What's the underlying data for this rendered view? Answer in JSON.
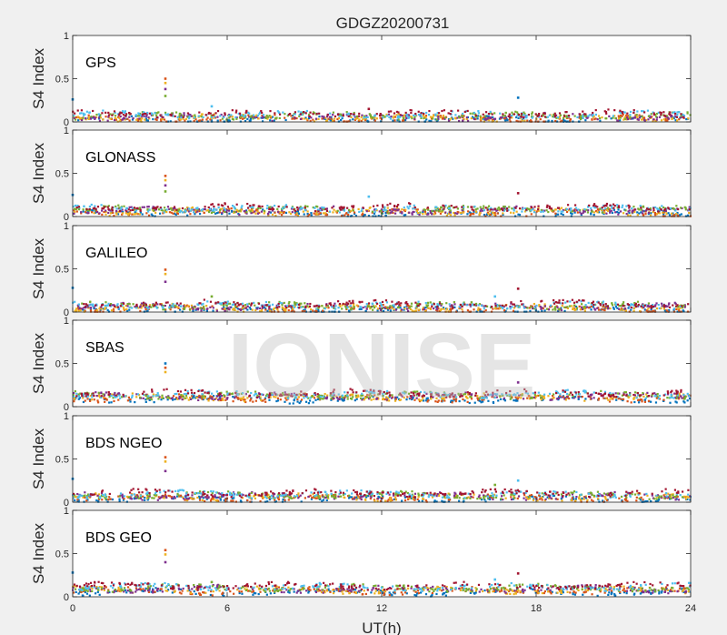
{
  "figure": {
    "title": "GDGZ20200731",
    "xlabel": "UT(h)",
    "watermark": "IONISE",
    "background": "#f0f0f0"
  },
  "chart_data": {
    "type": "scatter",
    "title": "GDGZ20200731",
    "xlabel": "UT(h)",
    "xlim": [
      0,
      24
    ],
    "xticks": [
      0,
      6,
      12,
      18,
      24
    ],
    "ylim": [
      0,
      1
    ],
    "yticks": [
      0,
      0.5,
      1
    ],
    "ylabel": "S4 Index",
    "grid": false,
    "series_colors": [
      "#0072BD",
      "#D95319",
      "#EDB120",
      "#7E2F8E",
      "#77AC30",
      "#4DBEEE",
      "#A2142F"
    ],
    "panels": [
      {
        "name": "GPS",
        "baseline": 0.06,
        "points": [
          {
            "x": 0.0,
            "y": 0.26
          },
          {
            "x": 3.6,
            "y": 0.5
          },
          {
            "x": 3.6,
            "y": 0.45
          },
          {
            "x": 3.6,
            "y": 0.38
          },
          {
            "x": 3.6,
            "y": 0.3
          },
          {
            "x": 5.4,
            "y": 0.18
          },
          {
            "x": 11.5,
            "y": 0.15
          },
          {
            "x": 17.3,
            "y": 0.28
          }
        ]
      },
      {
        "name": "GLONASS",
        "baseline": 0.07,
        "points": [
          {
            "x": 0.0,
            "y": 0.25
          },
          {
            "x": 3.6,
            "y": 0.47
          },
          {
            "x": 3.6,
            "y": 0.42
          },
          {
            "x": 3.6,
            "y": 0.36
          },
          {
            "x": 3.6,
            "y": 0.29
          },
          {
            "x": 11.5,
            "y": 0.23
          },
          {
            "x": 17.3,
            "y": 0.27
          }
        ]
      },
      {
        "name": "GALILEO",
        "baseline": 0.06,
        "points": [
          {
            "x": 0.0,
            "y": 0.28
          },
          {
            "x": 3.6,
            "y": 0.49
          },
          {
            "x": 3.6,
            "y": 0.44
          },
          {
            "x": 3.6,
            "y": 0.35
          },
          {
            "x": 5.4,
            "y": 0.18
          },
          {
            "x": 16.4,
            "y": 0.18
          },
          {
            "x": 17.3,
            "y": 0.27
          }
        ]
      },
      {
        "name": "SBAS",
        "baseline": 0.12,
        "points": [
          {
            "x": 3.6,
            "y": 0.5
          },
          {
            "x": 3.6,
            "y": 0.45
          },
          {
            "x": 3.6,
            "y": 0.4
          },
          {
            "x": 17.3,
            "y": 0.28
          }
        ]
      },
      {
        "name": "BDS NGEO",
        "baseline": 0.07,
        "points": [
          {
            "x": 0.0,
            "y": 0.27
          },
          {
            "x": 3.6,
            "y": 0.52
          },
          {
            "x": 3.6,
            "y": 0.47
          },
          {
            "x": 3.6,
            "y": 0.36
          },
          {
            "x": 16.4,
            "y": 0.2
          },
          {
            "x": 17.3,
            "y": 0.25
          }
        ]
      },
      {
        "name": "BDS GEO",
        "baseline": 0.09,
        "points": [
          {
            "x": 0.0,
            "y": 0.28
          },
          {
            "x": 3.6,
            "y": 0.54
          },
          {
            "x": 3.6,
            "y": 0.49
          },
          {
            "x": 3.6,
            "y": 0.4
          },
          {
            "x": 5.4,
            "y": 0.17
          },
          {
            "x": 16.4,
            "y": 0.2
          },
          {
            "x": 17.3,
            "y": 0.27
          }
        ]
      }
    ]
  }
}
